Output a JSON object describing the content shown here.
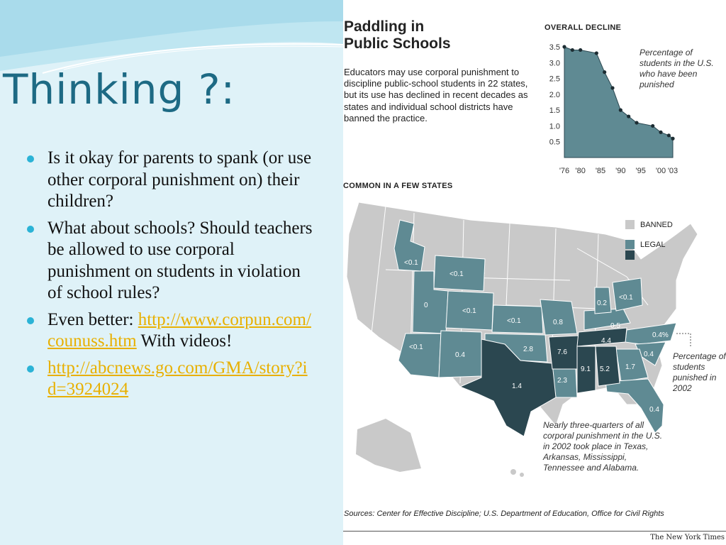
{
  "slide": {
    "title": "Thinking ?:",
    "bullets": [
      {
        "text": "Is it okay for parents to spank (or use other corporal punishment on) their children?"
      },
      {
        "text": "What about schools?  Should teachers be allowed to use corporal punishment on students in violation of school rules?"
      },
      {
        "prefix": "Even better: ",
        "link": "http://www.corpun.com/counuss.htm",
        "suffix": " With videos!"
      },
      {
        "link": "http://abcnews.go.com/GMA/story?id=3924024"
      }
    ]
  },
  "figure": {
    "title_line1": "Paddling in",
    "title_line2": "Public Schools",
    "description": "Educators may use corporal punishment to discipline public-school students in 22 states, but its use has declined in recent decades as states and individual school districts have banned the practice.",
    "map_heading": "COMMON IN A FEW STATES",
    "legend": [
      {
        "label": "BANNED",
        "color": "#c9c9c9"
      },
      {
        "label": "LEGAL",
        "color": "#5f8a93"
      },
      {
        "label": "",
        "color": "#2b4750"
      }
    ],
    "map_annotation": "Percentage of students punished in 2002",
    "bottom_note": "Nearly three-quarters of all corporal punishment in the U.S. in 2002 took place in Texas, Arkansas, Mississippi, Tennessee and Alabama.",
    "sources": "Sources: Center for Effective Discipline; U.S. Department of Education, Office for Civil Rights",
    "credit": "The New York Times",
    "state_labels": [
      {
        "label": "<0.1",
        "state": "Idaho",
        "tone": "legal"
      },
      {
        "label": "<0.1",
        "state": "Wyoming",
        "tone": "legal"
      },
      {
        "label": "0",
        "state": "Utah",
        "tone": "legal"
      },
      {
        "label": "<0.1",
        "state": "Colorado",
        "tone": "legal"
      },
      {
        "label": "<0.1",
        "state": "Arizona",
        "tone": "legal"
      },
      {
        "label": "0.4",
        "state": "New Mexico",
        "tone": "legal"
      },
      {
        "label": "<0.1",
        "state": "Kansas",
        "tone": "legal"
      },
      {
        "label": "2.8",
        "state": "Oklahoma",
        "tone": "legal"
      },
      {
        "label": "1.4",
        "state": "Texas",
        "tone": "high"
      },
      {
        "label": "0.8",
        "state": "Missouri",
        "tone": "legal"
      },
      {
        "label": "7.6",
        "state": "Arkansas",
        "tone": "high"
      },
      {
        "label": "2.3",
        "state": "Louisiana",
        "tone": "legal"
      },
      {
        "label": "9.1",
        "state": "Mississippi",
        "tone": "high"
      },
      {
        "label": "5.2",
        "state": "Alabama",
        "tone": "high"
      },
      {
        "label": "4.4",
        "state": "Tennessee",
        "tone": "high"
      },
      {
        "label": "0.5",
        "state": "Kentucky",
        "tone": "legal"
      },
      {
        "label": "0.2",
        "state": "Indiana",
        "tone": "legal"
      },
      {
        "label": "<0.1",
        "state": "Ohio",
        "tone": "legal"
      },
      {
        "label": "0.4%",
        "state": "North Carolina",
        "tone": "legal"
      },
      {
        "label": "0.4",
        "state": "South Carolina",
        "tone": "legal"
      },
      {
        "label": "1.7",
        "state": "Georgia",
        "tone": "legal"
      },
      {
        "label": "0.4",
        "state": "Florida",
        "tone": "legal"
      }
    ]
  },
  "chart_data": {
    "type": "area",
    "title": "OVERALL DECLINE",
    "annotation": "Percentage of students in the U.S. who have been punished",
    "x_tick_labels": [
      "'76",
      "'80",
      "'85",
      "'90",
      "'95",
      "'00",
      "'03"
    ],
    "x_ticks": [
      1976,
      1980,
      1985,
      1990,
      1995,
      2000,
      2003
    ],
    "y_ticks": [
      0.5,
      1.0,
      1.5,
      2.0,
      2.5,
      3.0,
      3.5
    ],
    "y_tick_labels": [
      "0.5",
      "1.0",
      "1.5",
      "2.0",
      "2.5",
      "3.0",
      "3.5"
    ],
    "xlim": [
      1976,
      2003
    ],
    "ylim": [
      0,
      3.5
    ],
    "x": [
      1976,
      1978,
      1980,
      1984,
      1986,
      1988,
      1990,
      1992,
      1994,
      1998,
      2000,
      2002,
      2003
    ],
    "y": [
      3.5,
      3.4,
      3.4,
      3.3,
      2.7,
      2.2,
      1.5,
      1.3,
      1.1,
      1.0,
      0.8,
      0.7,
      0.6
    ],
    "fill_color": "#5f8a93",
    "grid": false
  }
}
